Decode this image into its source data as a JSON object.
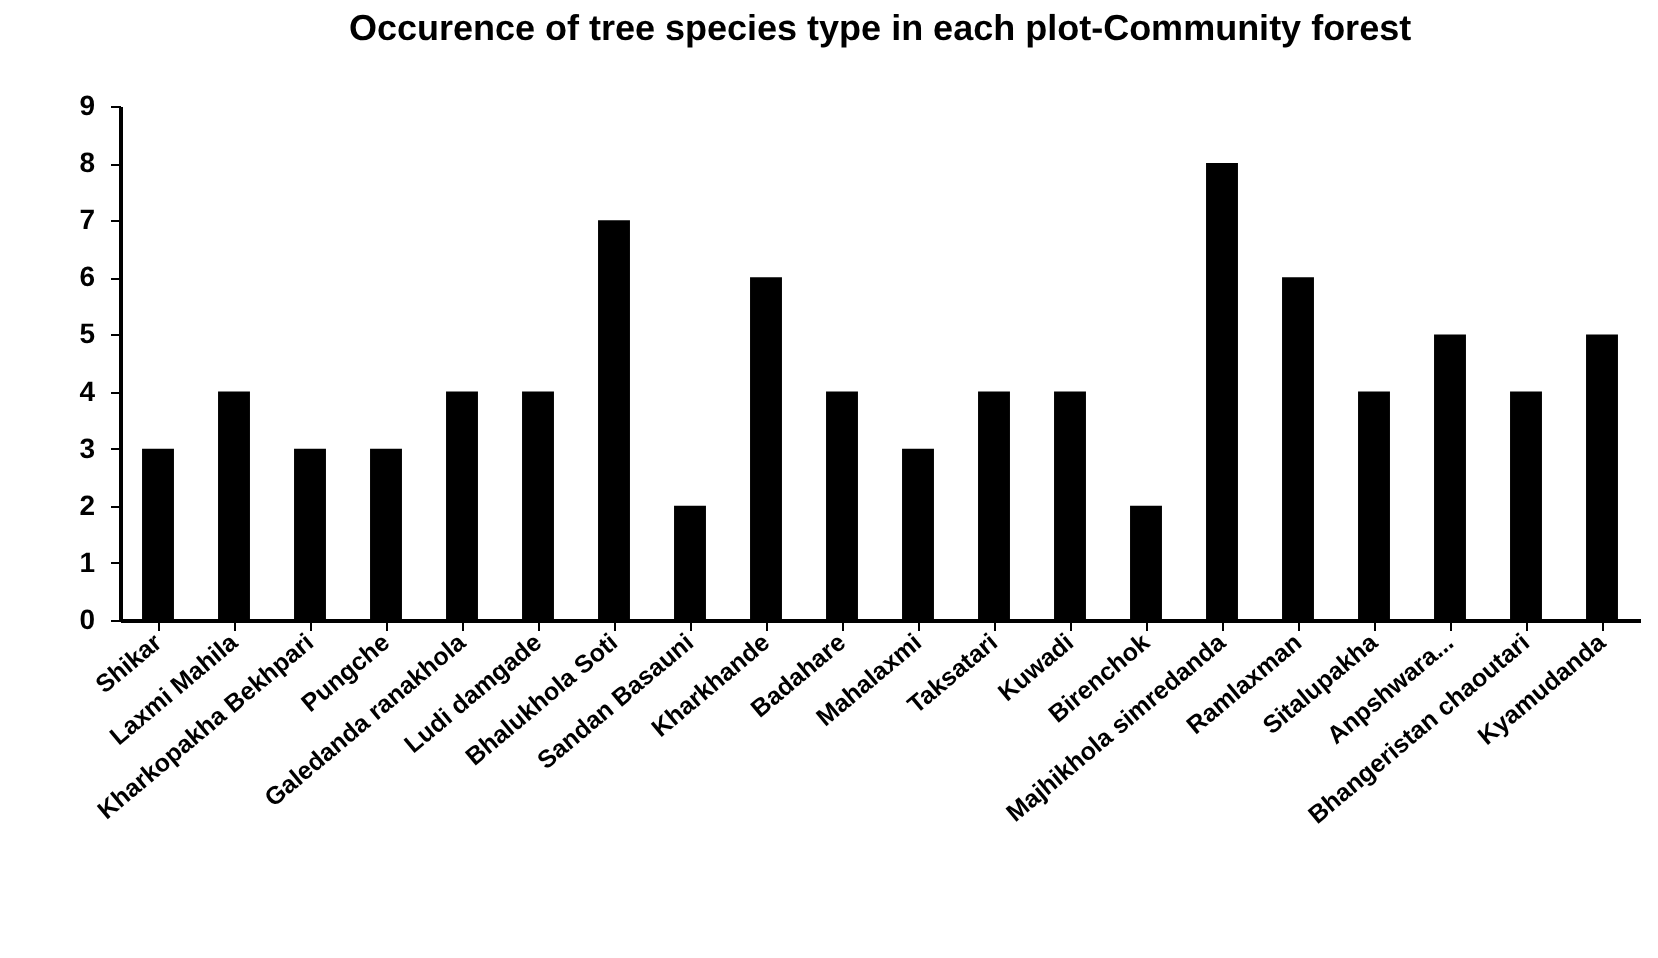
{
  "chart_data": {
    "type": "bar",
    "title": "Occurence of tree species type in each plot-Community forest",
    "categories": [
      "Shikar",
      "Laxmi Mahila",
      "Kharkopakha Bekhpari",
      "Pungche",
      "Galedanda ranakhola",
      "Ludi damgade",
      "Bhalukhola Soti",
      "Sandan Basauni",
      "Kharkhande",
      "Badahare",
      "Mahalaxmi",
      "Taksatari",
      "Kuwadi",
      "Birenchok",
      "Majhikhola simredanda",
      "Ramlaxman",
      "Sitalupakha",
      "Anpshwara...",
      "Bhangeristan chaoutari",
      "Kyamudanda"
    ],
    "values": [
      3,
      4,
      3,
      3,
      4,
      4,
      7,
      2,
      6,
      4,
      3,
      4,
      4,
      2,
      8,
      6,
      4,
      5,
      4,
      5
    ],
    "color": "#000000",
    "ylim": [
      0,
      9
    ],
    "yticks": [
      0,
      1,
      2,
      3,
      4,
      5,
      6,
      7,
      8,
      9
    ],
    "grid": false
  }
}
